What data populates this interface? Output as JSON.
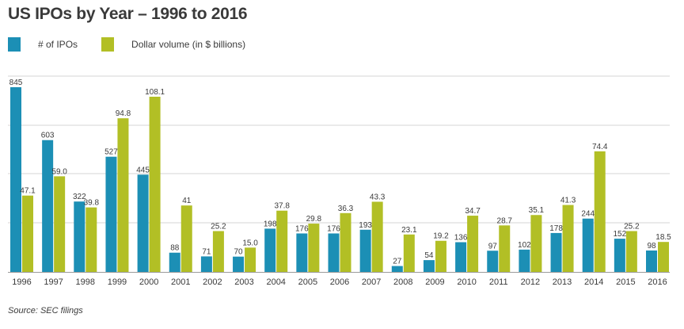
{
  "title": "US IPOs by Year – 1996 to 2016",
  "legend": [
    {
      "label": "# of IPOs",
      "color": "#1c8fb5"
    },
    {
      "label": "Dollar volume (in $ billions)",
      "color": "#b2bf25"
    }
  ],
  "source": "Source: SEC filings",
  "chart_data": {
    "type": "bar",
    "title": "US IPOs by Year – 1996 to 2016",
    "categories": [
      "1996",
      "1997",
      "1998",
      "1999",
      "2000",
      "2001",
      "2002",
      "2003",
      "2004",
      "2005",
      "2006",
      "2007",
      "2008",
      "2009",
      "2010",
      "2011",
      "2012",
      "2013",
      "2014",
      "2015",
      "2016"
    ],
    "series": [
      {
        "name": "# of IPOs",
        "color": "#1c8fb5",
        "values": [
          845,
          603,
          322,
          527,
          445,
          88,
          71,
          70,
          198,
          176,
          176,
          193,
          27,
          54,
          136,
          97,
          102,
          178,
          244,
          152,
          98
        ],
        "labels": [
          "845",
          "603",
          "322",
          "527",
          "445",
          "88",
          "71",
          "70",
          "198",
          "176",
          "176",
          "193",
          "27",
          "54",
          "136",
          "97",
          "102",
          "178",
          "244",
          "152",
          "98"
        ]
      },
      {
        "name": "Dollar volume (in $ billions)",
        "color": "#b2bf25",
        "values": [
          47.1,
          59.0,
          39.8,
          94.8,
          108.1,
          41,
          25.2,
          15.0,
          37.8,
          29.8,
          36.3,
          43.3,
          23.1,
          19.2,
          34.7,
          28.7,
          35.1,
          41.3,
          74.4,
          25.2,
          18.5
        ],
        "labels": [
          "47.1",
          "59.0",
          "39.8",
          "94.8",
          "108.1",
          "41",
          "25.2",
          "15.0",
          "37.8",
          "29.8",
          "36.3",
          "43.3",
          "23.1",
          "19.2",
          "34.7",
          "28.7",
          "35.1",
          "41.3",
          "74.4",
          "25.2",
          "18.5"
        ]
      }
    ],
    "legend_position": "top-left",
    "grid": true
  }
}
